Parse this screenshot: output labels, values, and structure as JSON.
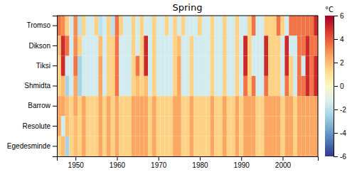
{
  "chart_data": {
    "type": "heatmap",
    "title": "Spring",
    "categories": [
      "Tromso",
      "Dikson",
      "Tiksi",
      "Shmidta",
      "Barrow",
      "Resolute",
      "Egedesminde"
    ],
    "x": [
      1946,
      1947,
      1948,
      1949,
      1950,
      1951,
      1952,
      1953,
      1954,
      1955,
      1956,
      1957,
      1958,
      1959,
      1960,
      1961,
      1962,
      1963,
      1964,
      1965,
      1966,
      1967,
      1968,
      1969,
      1970,
      1971,
      1972,
      1973,
      1974,
      1975,
      1976,
      1977,
      1978,
      1979,
      1980,
      1981,
      1982,
      1983,
      1984,
      1985,
      1986,
      1987,
      1988,
      1989,
      1990,
      1991,
      1992,
      1993,
      1994,
      1995,
      1996,
      1997,
      1998,
      1999,
      2000,
      2001,
      2002,
      2003,
      2004,
      2005,
      2006,
      2007,
      2008
    ],
    "xlim": [
      1945.5,
      2008.5
    ],
    "xticks": [
      1950,
      1960,
      1970,
      1980,
      1990,
      2000
    ],
    "values": [
      [
        3.5,
        3.0,
        1.5,
        -1.5,
        3.0,
        -2.0,
        1.5,
        -1.5,
        -1.5,
        1.5,
        -2.0,
        -1.5,
        1.5,
        -2.0,
        3.5,
        1.5,
        -1.5,
        -1.5,
        1.5,
        -1.5,
        1.5,
        -1.5,
        -1.5,
        1.5,
        -1.5,
        -1.5,
        1.5,
        -1.5,
        1.5,
        -1.5,
        1.5,
        -1.5,
        -1.5,
        -1.5,
        1.5,
        -1.5,
        -1.5,
        1.5,
        -1.5,
        -1.5,
        1.5,
        -1.5,
        -1.5,
        1.5,
        -1.5,
        -1.5,
        1.5,
        3.5,
        -1.5,
        -1.5,
        1.5,
        1.5,
        1.5,
        3.5,
        1.5,
        -1.5,
        3.5,
        3.5,
        3.5,
        3.5,
        3.5,
        3.5,
        5.0
      ],
      [
        2.0,
        5.0,
        3.5,
        -1.5,
        3.0,
        1.5,
        -1.5,
        -1.5,
        -1.5,
        -1.5,
        2.0,
        -1.5,
        1.5,
        1.5,
        3.5,
        -1.5,
        -1.5,
        -1.5,
        1.5,
        -1.5,
        1.5,
        5.0,
        -1.5,
        1.5,
        -1.5,
        -1.5,
        -1.5,
        -1.5,
        1.5,
        2.0,
        -1.5,
        -1.5,
        1.5,
        -1.5,
        -1.5,
        -1.5,
        -1.5,
        1.5,
        -1.5,
        -1.5,
        1.5,
        -1.5,
        -1.5,
        1.5,
        -1.5,
        5.0,
        1.5,
        -1.5,
        -1.5,
        -1.5,
        5.0,
        1.5,
        1.5,
        1.5,
        -1.5,
        5.0,
        -1.5,
        -1.5,
        3.5,
        3.5,
        5.0,
        3.5,
        3.5
      ],
      [
        1.5,
        5.0,
        -1.5,
        -1.5,
        3.5,
        -2.5,
        -1.5,
        -1.5,
        -1.5,
        -1.5,
        2.5,
        -1.5,
        1.5,
        1.5,
        3.5,
        -1.5,
        -1.5,
        -1.5,
        1.5,
        3.5,
        1.5,
        5.0,
        -1.5,
        1.5,
        -1.5,
        -1.5,
        -1.5,
        -1.5,
        1.5,
        2.5,
        -1.5,
        -1.5,
        1.5,
        -1.5,
        -1.5,
        -1.5,
        -1.5,
        1.5,
        -1.5,
        -1.5,
        1.5,
        -1.5,
        -1.5,
        1.5,
        -1.5,
        5.0,
        1.5,
        -1.5,
        -1.5,
        -1.5,
        5.0,
        1.5,
        1.5,
        1.5,
        -1.5,
        5.0,
        1.5,
        -1.5,
        3.5,
        -1.5,
        5.0,
        3.5,
        5.0
      ],
      [
        1.5,
        2.0,
        -2.5,
        -1.5,
        2.5,
        -2.5,
        -1.5,
        -1.5,
        -1.5,
        -1.5,
        2.5,
        -1.5,
        1.5,
        1.5,
        3.5,
        -1.5,
        -1.5,
        -1.5,
        1.5,
        2.0,
        1.5,
        2.0,
        -1.5,
        1.5,
        -1.5,
        -1.5,
        -1.5,
        -1.5,
        1.5,
        2.5,
        -1.5,
        -1.5,
        1.5,
        -1.5,
        -1.5,
        -1.5,
        -1.5,
        1.5,
        -1.5,
        -1.5,
        1.5,
        -1.5,
        -1.5,
        1.5,
        -1.5,
        3.5,
        1.5,
        3.5,
        -1.5,
        -1.5,
        3.5,
        1.5,
        1.5,
        1.5,
        -1.5,
        3.5,
        1.5,
        -1.5,
        3.5,
        3.5,
        5.0,
        3.5,
        5.0
      ],
      [
        2.5,
        2.5,
        2.0,
        1.5,
        2.5,
        1.5,
        2.5,
        1.5,
        1.5,
        1.5,
        2.5,
        1.5,
        2.5,
        1.5,
        2.5,
        1.5,
        1.5,
        1.5,
        2.5,
        2.5,
        2.5,
        2.5,
        1.5,
        2.5,
        1.5,
        1.5,
        1.5,
        1.5,
        2.5,
        2.5,
        1.5,
        1.5,
        2.5,
        1.5,
        1.5,
        1.5,
        1.5,
        2.5,
        1.5,
        1.5,
        2.5,
        1.5,
        1.5,
        2.5,
        1.5,
        2.5,
        2.5,
        2.5,
        1.5,
        1.5,
        2.5,
        2.5,
        2.5,
        2.5,
        1.5,
        2.5,
        2.5,
        1.5,
        2.5,
        2.5,
        2.5,
        2.5,
        2.5
      ],
      [
        2.5,
        -1.5,
        2.0,
        1.5,
        2.0,
        1.5,
        2.5,
        1.5,
        1.5,
        1.5,
        2.5,
        1.5,
        2.5,
        1.5,
        2.5,
        1.5,
        1.5,
        1.5,
        2.5,
        2.5,
        2.5,
        2.5,
        1.5,
        2.5,
        1.5,
        1.5,
        1.5,
        1.5,
        2.5,
        2.5,
        1.5,
        1.5,
        2.5,
        1.5,
        1.5,
        1.5,
        1.5,
        2.5,
        1.5,
        1.5,
        2.5,
        1.5,
        1.5,
        2.5,
        1.5,
        2.5,
        2.5,
        2.5,
        1.5,
        1.5,
        2.5,
        2.5,
        2.5,
        2.5,
        1.5,
        2.5,
        2.5,
        1.5,
        2.5,
        2.5,
        2.5,
        2.5,
        2.5
      ],
      [
        1.5,
        2.0,
        -2.5,
        1.5,
        2.0,
        1.5,
        2.5,
        1.5,
        1.5,
        1.5,
        2.5,
        1.5,
        2.5,
        1.5,
        2.5,
        1.5,
        1.5,
        1.5,
        2.5,
        2.5,
        2.5,
        2.5,
        1.5,
        2.5,
        1.5,
        1.5,
        1.5,
        1.5,
        2.5,
        2.5,
        1.5,
        1.5,
        2.5,
        1.5,
        1.5,
        1.5,
        1.5,
        2.5,
        1.5,
        1.5,
        2.5,
        1.5,
        1.5,
        2.5,
        1.5,
        2.5,
        2.5,
        2.5,
        1.5,
        1.5,
        2.5,
        2.5,
        2.5,
        2.5,
        1.5,
        2.5,
        2.5,
        1.5,
        2.5,
        2.5,
        2.5,
        2.5,
        2.5
      ]
    ],
    "colorbar_label": "°C",
    "colorbar_range": [
      -6,
      6
    ],
    "colorbar_ticks": [
      -6,
      -4,
      -2,
      0,
      2,
      4,
      6
    ]
  }
}
